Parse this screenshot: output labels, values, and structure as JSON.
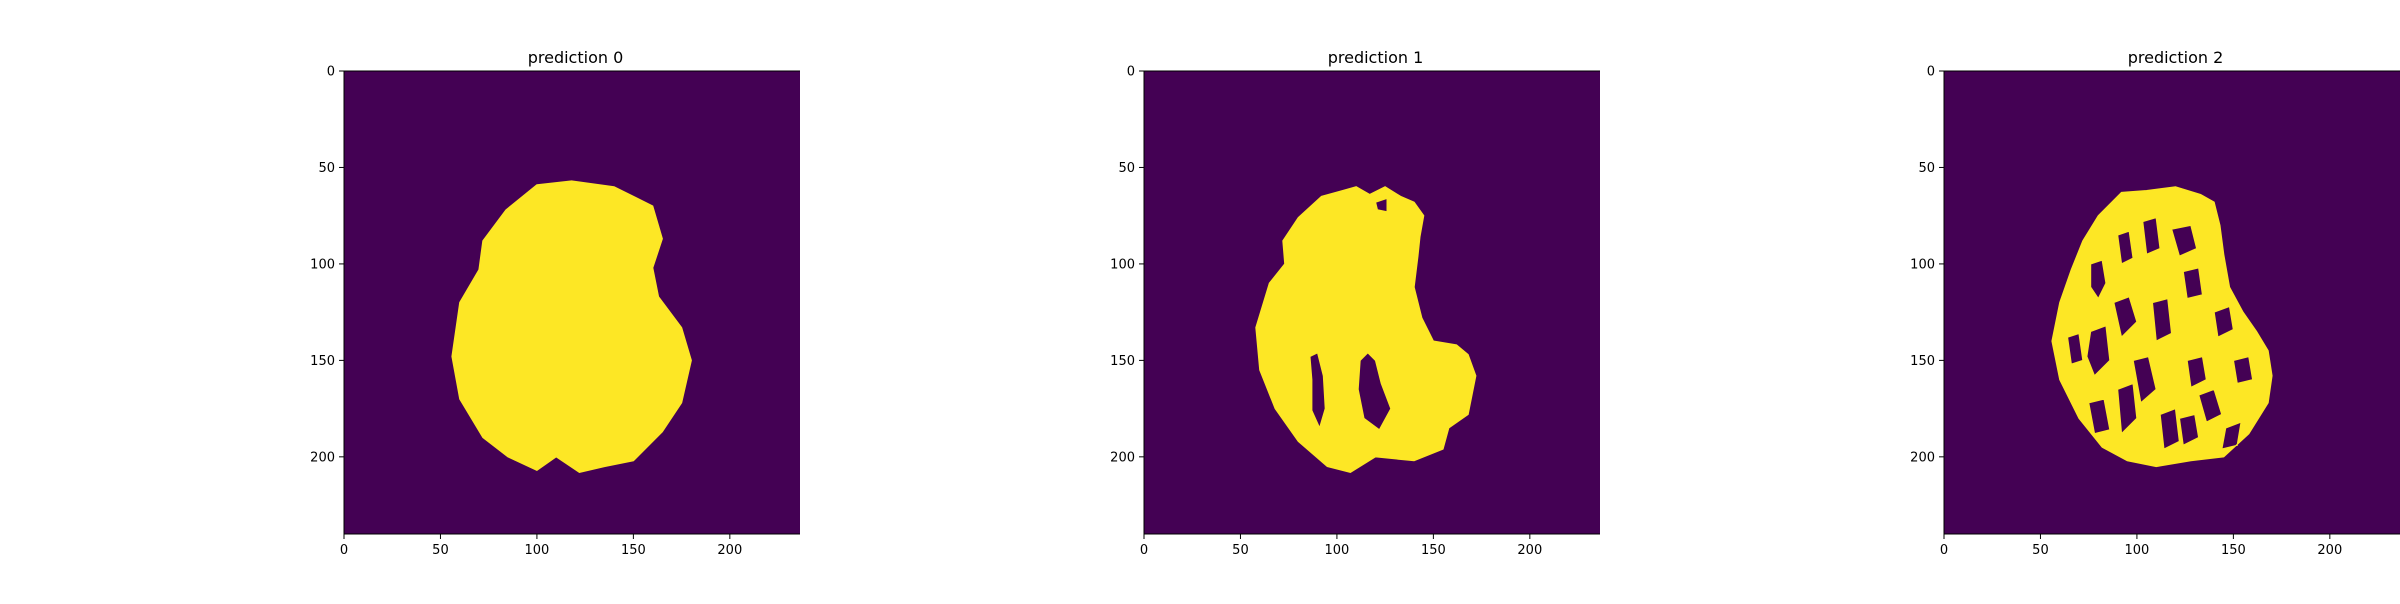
{
  "figure": {
    "background": "#ffffff"
  },
  "colors": {
    "background_class": "#440154",
    "foreground_class": "#fde725"
  },
  "chart_data": [
    {
      "type": "heatmap",
      "title": "prediction 0",
      "xlim": [
        0,
        240
      ],
      "ylim": [
        240,
        0
      ],
      "xticks": [
        0,
        50,
        100,
        150,
        200
      ],
      "yticks": [
        0,
        50,
        100,
        150,
        200
      ],
      "grid": false,
      "colormap": "viridis",
      "values_range": [
        0,
        1
      ],
      "mask_outline": [
        [
          100,
          59
        ],
        [
          118,
          57
        ],
        [
          140,
          60
        ],
        [
          160,
          70
        ],
        [
          165,
          87
        ],
        [
          160,
          102
        ],
        [
          163,
          117
        ],
        [
          175,
          133
        ],
        [
          180,
          150
        ],
        [
          175,
          172
        ],
        [
          165,
          187
        ],
        [
          150,
          202
        ],
        [
          135,
          205
        ],
        [
          122,
          208
        ],
        [
          110,
          200
        ],
        [
          100,
          207
        ],
        [
          85,
          200
        ],
        [
          72,
          190
        ],
        [
          60,
          170
        ],
        [
          56,
          148
        ],
        [
          60,
          120
        ],
        [
          70,
          103
        ],
        [
          72,
          88
        ],
        [
          84,
          72
        ]
      ],
      "holes": []
    },
    {
      "type": "heatmap",
      "title": "prediction 1",
      "xlim": [
        0,
        240
      ],
      "ylim": [
        240,
        0
      ],
      "xticks": [
        0,
        50,
        100,
        150,
        200
      ],
      "yticks": [
        0,
        50,
        100,
        150,
        200
      ],
      "grid": false,
      "colormap": "viridis",
      "values_range": [
        0,
        1
      ],
      "mask_outline": [
        [
          72,
          88
        ],
        [
          80,
          76
        ],
        [
          92,
          65
        ],
        [
          103,
          62
        ],
        [
          110,
          60
        ],
        [
          117,
          64
        ],
        [
          125,
          60
        ],
        [
          133,
          65
        ],
        [
          140,
          68
        ],
        [
          145,
          75
        ],
        [
          143,
          86
        ],
        [
          142,
          96
        ],
        [
          140,
          112
        ],
        [
          144,
          128
        ],
        [
          150,
          140
        ],
        [
          162,
          142
        ],
        [
          168,
          147
        ],
        [
          172,
          158
        ],
        [
          168,
          178
        ],
        [
          158,
          185
        ],
        [
          155,
          196
        ],
        [
          140,
          202
        ],
        [
          120,
          200
        ],
        [
          107,
          208
        ],
        [
          95,
          205
        ],
        [
          80,
          192
        ],
        [
          68,
          175
        ],
        [
          60,
          155
        ],
        [
          58,
          133
        ],
        [
          65,
          110
        ],
        [
          73,
          100
        ]
      ],
      "holes": [
        [
          [
            86,
            148
          ],
          [
            90,
            146
          ],
          [
            93,
            158
          ],
          [
            94,
            175
          ],
          [
            91,
            185
          ],
          [
            87,
            176
          ],
          [
            87,
            160
          ]
        ],
        [
          [
            112,
            150
          ],
          [
            116,
            146
          ],
          [
            120,
            150
          ],
          [
            123,
            162
          ],
          [
            128,
            175
          ],
          [
            122,
            186
          ],
          [
            114,
            180
          ],
          [
            111,
            165
          ]
        ],
        [
          [
            120,
            68
          ],
          [
            126,
            66
          ],
          [
            126,
            73
          ],
          [
            121,
            72
          ]
        ]
      ]
    },
    {
      "type": "heatmap",
      "title": "prediction 2",
      "xlim": [
        0,
        240
      ],
      "ylim": [
        240,
        0
      ],
      "xticks": [
        0,
        50,
        100,
        150,
        200
      ],
      "yticks": [
        0,
        50,
        100,
        150,
        200
      ],
      "grid": false,
      "colormap": "viridis",
      "values_range": [
        0,
        1
      ],
      "mask_outline": [
        [
          72,
          88
        ],
        [
          80,
          75
        ],
        [
          92,
          63
        ],
        [
          105,
          62
        ],
        [
          120,
          60
        ],
        [
          133,
          64
        ],
        [
          140,
          68
        ],
        [
          143,
          80
        ],
        [
          145,
          95
        ],
        [
          148,
          112
        ],
        [
          155,
          125
        ],
        [
          162,
          135
        ],
        [
          168,
          145
        ],
        [
          170,
          158
        ],
        [
          168,
          172
        ],
        [
          158,
          188
        ],
        [
          145,
          200
        ],
        [
          128,
          202
        ],
        [
          110,
          205
        ],
        [
          95,
          202
        ],
        [
          82,
          195
        ],
        [
          70,
          180
        ],
        [
          60,
          160
        ],
        [
          56,
          140
        ],
        [
          60,
          120
        ],
        [
          66,
          103
        ]
      ],
      "holes": [
        [
          [
            76,
            100
          ],
          [
            82,
            98
          ],
          [
            84,
            110
          ],
          [
            80,
            118
          ],
          [
            76,
            112
          ]
        ],
        [
          [
            90,
            85
          ],
          [
            96,
            83
          ],
          [
            98,
            97
          ],
          [
            92,
            100
          ]
        ],
        [
          [
            103,
            78
          ],
          [
            110,
            76
          ],
          [
            112,
            92
          ],
          [
            105,
            95
          ]
        ],
        [
          [
            118,
            82
          ],
          [
            128,
            80
          ],
          [
            131,
            92
          ],
          [
            122,
            96
          ]
        ],
        [
          [
            64,
            138
          ],
          [
            70,
            136
          ],
          [
            72,
            150
          ],
          [
            66,
            152
          ]
        ],
        [
          [
            76,
            135
          ],
          [
            84,
            132
          ],
          [
            86,
            150
          ],
          [
            78,
            158
          ],
          [
            74,
            148
          ]
        ],
        [
          [
            88,
            120
          ],
          [
            96,
            117
          ],
          [
            100,
            130
          ],
          [
            92,
            138
          ]
        ],
        [
          [
            98,
            150
          ],
          [
            106,
            148
          ],
          [
            110,
            165
          ],
          [
            102,
            172
          ]
        ],
        [
          [
            90,
            165
          ],
          [
            98,
            162
          ],
          [
            100,
            180
          ],
          [
            92,
            188
          ]
        ],
        [
          [
            75,
            172
          ],
          [
            83,
            170
          ],
          [
            86,
            186
          ],
          [
            78,
            188
          ]
        ],
        [
          [
            108,
            120
          ],
          [
            116,
            118
          ],
          [
            118,
            136
          ],
          [
            110,
            140
          ]
        ],
        [
          [
            112,
            178
          ],
          [
            120,
            175
          ],
          [
            122,
            192
          ],
          [
            114,
            196
          ]
        ],
        [
          [
            126,
            150
          ],
          [
            134,
            148
          ],
          [
            136,
            160
          ],
          [
            128,
            164
          ]
        ],
        [
          [
            132,
            168
          ],
          [
            140,
            165
          ],
          [
            144,
            178
          ],
          [
            136,
            182
          ]
        ],
        [
          [
            150,
            150
          ],
          [
            158,
            148
          ],
          [
            160,
            160
          ],
          [
            152,
            162
          ]
        ],
        [
          [
            140,
            125
          ],
          [
            148,
            122
          ],
          [
            150,
            134
          ],
          [
            142,
            138
          ]
        ],
        [
          [
            124,
            104
          ],
          [
            132,
            102
          ],
          [
            134,
            116
          ],
          [
            126,
            118
          ]
        ],
        [
          [
            122,
            180
          ],
          [
            130,
            178
          ],
          [
            132,
            190
          ],
          [
            124,
            194
          ]
        ],
        [
          [
            146,
            185
          ],
          [
            154,
            182
          ],
          [
            152,
            194
          ],
          [
            144,
            196
          ]
        ]
      ]
    }
  ]
}
